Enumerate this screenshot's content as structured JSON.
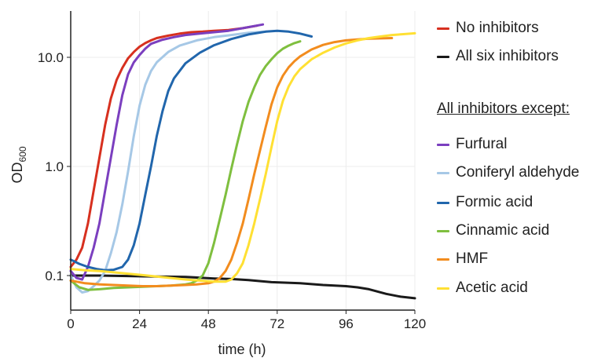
{
  "chart_data": {
    "type": "line",
    "title": "",
    "xlabel": "time (h)",
    "ylabel_main": "OD",
    "ylabel_sub": "600",
    "xlim": [
      0,
      120
    ],
    "ylim": [
      0.05,
      25
    ],
    "yscale": "log",
    "x_ticks": [
      0,
      24,
      48,
      72,
      96,
      120
    ],
    "x_tick_labels": [
      "0",
      "24",
      "48",
      "72",
      "96",
      "120"
    ],
    "y_ticks": [
      0.1,
      1,
      10
    ],
    "y_tick_labels": [
      "0.1",
      "1.0",
      "10.0"
    ],
    "grid": true,
    "legend_position": "right",
    "legend_group_heading": "All inhibitors except:",
    "series": [
      {
        "name": "No inhibitors",
        "color": "#d7301f",
        "x": [
          0,
          2,
          4,
          6,
          8,
          10,
          12,
          14,
          16,
          18,
          20,
          22,
          24,
          26,
          28,
          30,
          34,
          38,
          42,
          46,
          50,
          55,
          60,
          65
        ],
        "y": [
          0.12,
          0.14,
          0.18,
          0.3,
          0.6,
          1.2,
          2.4,
          4.2,
          6.2,
          8.0,
          9.8,
          11.2,
          12.5,
          13.5,
          14.3,
          15.0,
          15.8,
          16.5,
          17.0,
          17.2,
          17.5,
          17.8,
          18.5,
          19.5
        ]
      },
      {
        "name": "All six inhibitors",
        "color": "#1a1a1a",
        "x": [
          0,
          5,
          10,
          20,
          30,
          40,
          50,
          56,
          62,
          70,
          80,
          88,
          96,
          100,
          104,
          110,
          115,
          120
        ],
        "y": [
          0.1,
          0.1,
          0.1,
          0.099,
          0.098,
          0.097,
          0.094,
          0.093,
          0.091,
          0.087,
          0.085,
          0.082,
          0.08,
          0.078,
          0.075,
          0.068,
          0.064,
          0.062
        ]
      },
      {
        "name": "Furfural",
        "color": "#7b3fbf",
        "x": [
          0,
          2,
          4,
          6,
          8,
          10,
          12,
          14,
          16,
          18,
          20,
          22,
          24,
          26,
          28,
          32,
          36,
          40,
          45,
          50,
          55,
          60,
          67
        ],
        "y": [
          0.11,
          0.095,
          0.092,
          0.12,
          0.18,
          0.3,
          0.6,
          1.2,
          2.4,
          4.5,
          7.0,
          9.0,
          10.5,
          12.0,
          13.3,
          14.5,
          15.3,
          16.0,
          16.5,
          17.0,
          17.5,
          18.5,
          20.0
        ]
      },
      {
        "name": "Coniferyl aldehyde",
        "color": "#a6c8e6",
        "x": [
          0,
          2,
          4,
          6,
          8,
          10,
          12,
          14,
          16,
          18,
          20,
          22,
          24,
          26,
          28,
          30,
          34,
          38,
          44,
          50,
          56,
          62,
          68
        ],
        "y": [
          0.1,
          0.078,
          0.07,
          0.072,
          0.08,
          0.09,
          0.11,
          0.16,
          0.25,
          0.45,
          0.9,
          1.9,
          3.6,
          5.6,
          7.5,
          9.0,
          11.2,
          12.8,
          14.3,
          15.3,
          16.0,
          16.8,
          17.2
        ]
      },
      {
        "name": "Formic acid",
        "color": "#2166ac",
        "x": [
          0,
          3,
          6,
          9,
          12,
          15,
          18,
          20,
          22,
          24,
          26,
          28,
          30,
          32,
          34,
          36,
          40,
          45,
          50,
          56,
          62,
          68,
          72,
          76,
          80,
          84
        ],
        "y": [
          0.14,
          0.128,
          0.12,
          0.115,
          0.112,
          0.113,
          0.12,
          0.14,
          0.19,
          0.3,
          0.55,
          1.0,
          1.9,
          3.2,
          4.9,
          6.4,
          8.8,
          11.0,
          12.9,
          14.7,
          16.2,
          17.2,
          17.5,
          17.2,
          16.5,
          15.5
        ]
      },
      {
        "name": "Cinnamic acid",
        "color": "#7fbf3f",
        "x": [
          0,
          3,
          6,
          10,
          15,
          20,
          25,
          30,
          35,
          40,
          42,
          44,
          46,
          48,
          50,
          52,
          54,
          56,
          58,
          60,
          62,
          64,
          66,
          68,
          70,
          72,
          74,
          76,
          78,
          80
        ],
        "y": [
          0.09,
          0.078,
          0.074,
          0.075,
          0.077,
          0.078,
          0.079,
          0.08,
          0.081,
          0.083,
          0.085,
          0.09,
          0.1,
          0.13,
          0.2,
          0.33,
          0.55,
          0.95,
          1.6,
          2.6,
          3.9,
          5.3,
          6.9,
          8.3,
          9.6,
          10.9,
          12.0,
          12.8,
          13.5,
          14.0
        ]
      },
      {
        "name": "HMF",
        "color": "#f28c1e",
        "x": [
          0,
          5,
          10,
          15,
          20,
          25,
          30,
          35,
          40,
          44,
          48,
          50,
          52,
          54,
          56,
          58,
          60,
          62,
          64,
          66,
          68,
          70,
          72,
          74,
          76,
          78,
          80,
          84,
          88,
          92,
          96,
          100,
          104,
          108,
          112
        ],
        "y": [
          0.09,
          0.085,
          0.083,
          0.082,
          0.081,
          0.08,
          0.08,
          0.081,
          0.082,
          0.083,
          0.085,
          0.088,
          0.095,
          0.11,
          0.14,
          0.2,
          0.3,
          0.5,
          0.85,
          1.4,
          2.3,
          3.7,
          5.3,
          6.8,
          8.1,
          9.2,
          10.2,
          11.8,
          13.0,
          13.8,
          14.3,
          14.6,
          14.8,
          14.9,
          15.0
        ]
      },
      {
        "name": "Acetic acid",
        "color": "#ffe033",
        "x": [
          0,
          5,
          10,
          15,
          20,
          25,
          30,
          35,
          40,
          45,
          50,
          54,
          56,
          58,
          60,
          62,
          64,
          66,
          68,
          70,
          72,
          74,
          76,
          78,
          80,
          84,
          88,
          92,
          96,
          100,
          104,
          108,
          112,
          116,
          120
        ],
        "y": [
          0.115,
          0.112,
          0.11,
          0.107,
          0.104,
          0.101,
          0.098,
          0.095,
          0.092,
          0.09,
          0.088,
          0.088,
          0.092,
          0.105,
          0.13,
          0.19,
          0.3,
          0.5,
          0.85,
          1.5,
          2.6,
          4.0,
          5.4,
          6.7,
          7.8,
          9.6,
          11.0,
          12.3,
          13.4,
          14.3,
          15.0,
          15.5,
          16.0,
          16.3,
          16.6
        ]
      }
    ]
  }
}
